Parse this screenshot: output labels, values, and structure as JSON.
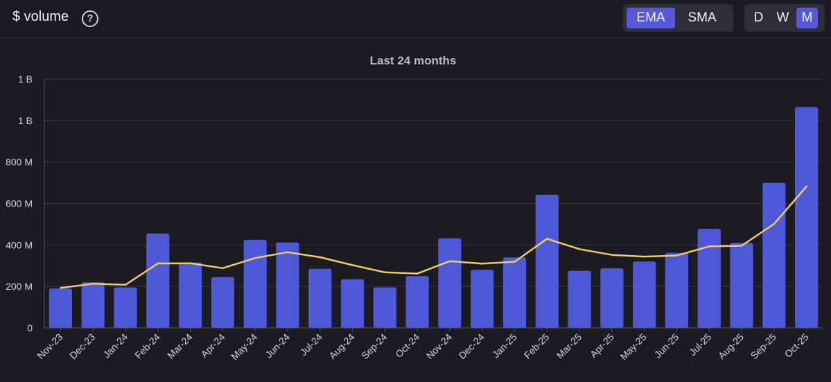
{
  "header": {
    "title": "$ volume",
    "help_icon": "question-circle-icon",
    "help_label": "?",
    "avg_toggle": {
      "options": [
        "EMA",
        "SMA"
      ],
      "selected": "EMA"
    },
    "period_toggle": {
      "options": [
        "D",
        "W",
        "M"
      ],
      "selected": "M"
    }
  },
  "colors": {
    "bar": "#4e59d8",
    "line": "#f0cc62",
    "active": "#5558d9",
    "background": "#1c1b22"
  },
  "chart_data": {
    "type": "bar",
    "title": "Last 24 months",
    "xlabel": "",
    "ylabel": "",
    "ylim": [
      0,
      1200
    ],
    "ytick_values": [
      0,
      200,
      400,
      600,
      800,
      1000,
      1200
    ],
    "ytick_labels": [
      "0",
      "200 M",
      "400 M",
      "600 M",
      "800 M",
      "1 B",
      "1 B"
    ],
    "categories": [
      "Nov-23",
      "Dec-23",
      "Jan-24",
      "Feb-24",
      "Mar-24",
      "Apr-24",
      "May-24",
      "Jun-24",
      "Jul-24",
      "Aug-24",
      "Sep-24",
      "Oct-24",
      "Nov-24",
      "Dec-24",
      "Jan-25",
      "Feb-25",
      "Mar-25",
      "Apr-25",
      "May-25",
      "Jun-25",
      "Jul-25",
      "Aug-25",
      "Sep-25",
      "Oct-25"
    ],
    "series": [
      {
        "name": "$ volume",
        "kind": "bar",
        "values": [
          190,
          220,
          195,
          455,
          315,
          245,
          425,
          412,
          285,
          235,
          195,
          250,
          432,
          280,
          340,
          642,
          275,
          288,
          320,
          362,
          478,
          410,
          700,
          1065
        ]
      },
      {
        "name": "EMA",
        "kind": "line",
        "values": [
          193,
          213,
          208,
          311,
          312,
          288,
          337,
          365,
          341,
          303,
          268,
          262,
          322,
          310,
          319,
          430,
          380,
          352,
          344,
          349,
          393,
          396,
          501,
          682
        ]
      }
    ],
    "grid": true
  }
}
